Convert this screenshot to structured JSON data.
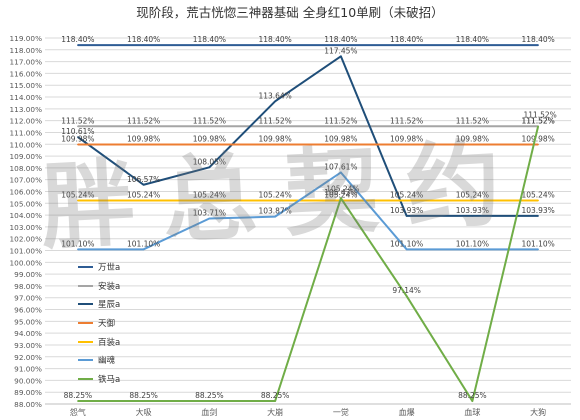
{
  "chart_data": {
    "type": "line",
    "title": "现阶段，荒古恍惚三神器基础 全身红10单刷（未破招）",
    "watermark": "胖总契约",
    "categories": [
      "怨气",
      "大吸",
      "血剑",
      "大崩",
      "一觉",
      "血爆",
      "血球",
      "大狗"
    ],
    "ylim": [
      0.88,
      1.19
    ],
    "y_ticks": [
      "88.00%",
      "89.00%",
      "90.00%",
      "91.00%",
      "92.00%",
      "93.00%",
      "94.00%",
      "95.00%",
      "96.00%",
      "97.00%",
      "98.00%",
      "99.00%",
      "100.00%",
      "101.00%",
      "102.00%",
      "103.00%",
      "104.00%",
      "105.00%",
      "106.00%",
      "107.00%",
      "108.00%",
      "109.00%",
      "110.00%",
      "111.00%",
      "112.00%",
      "113.00%",
      "114.00%",
      "115.00%",
      "116.00%",
      "117.00%",
      "118.00%",
      "119.00%"
    ],
    "xlabel": "",
    "ylabel": "",
    "grid": true,
    "legend_position": "left-middle",
    "series": [
      {
        "name": "万世a",
        "color": "#2e5c94",
        "values": [
          1.184,
          1.184,
          1.184,
          1.184,
          1.184,
          1.184,
          1.184,
          1.184
        ],
        "labels": [
          "118.40%",
          "118.40%",
          "118.40%",
          "118.40%",
          "118.40%",
          "118.40%",
          "118.40%",
          "118.40%"
        ]
      },
      {
        "name": "安装a",
        "color": "#a5a5a5",
        "values": [
          1.1152,
          1.1152,
          1.1152,
          1.1152,
          1.1152,
          1.1152,
          1.1152,
          1.1152
        ],
        "labels": [
          "111.52%",
          "111.52%",
          "111.52%",
          "111.52%",
          "111.52%",
          "111.52%",
          "111.52%",
          "111.52%"
        ]
      },
      {
        "name": "星辰a",
        "color": "#1f4e79",
        "values": [
          1.1061,
          1.0657,
          1.0805,
          1.1364,
          1.1745,
          1.0393,
          1.0393,
          1.0393
        ],
        "labels": [
          "110.61%",
          "106.57%",
          "108.05%",
          "113.64%",
          "117.45%",
          "103.93%",
          "103.93%",
          "103.93%"
        ]
      },
      {
        "name": "天御",
        "color": "#ed7d31",
        "values": [
          1.0998,
          1.0998,
          1.0998,
          1.0998,
          1.0998,
          1.0998,
          1.0998,
          1.0998
        ],
        "labels": [
          "109.98%",
          "109.98%",
          "109.98%",
          "109.98%",
          "109.98%",
          "109.98%",
          "109.98%",
          "109.98%"
        ]
      },
      {
        "name": "百装a",
        "color": "#ffc000",
        "values": [
          1.0524,
          1.0524,
          1.0524,
          1.0524,
          1.0524,
          1.0524,
          1.0524,
          1.0524
        ],
        "labels": [
          "105.24%",
          "105.24%",
          "105.24%",
          "105.24%",
          "105.24%",
          "105.24%",
          "105.24%",
          "105.24%"
        ]
      },
      {
        "name": "幽魂",
        "color": "#5b9bd5",
        "values": [
          1.011,
          1.011,
          1.0371,
          1.0387,
          1.0761,
          1.011,
          1.011,
          1.011
        ],
        "labels": [
          "101.10%",
          "101.10%",
          "103.71%",
          "103.87%",
          "107.61%",
          "101.10%",
          "101.10%",
          "101.10%"
        ]
      },
      {
        "name": "铁马a",
        "color": "#70ad47",
        "values": [
          0.8825,
          0.8825,
          0.8825,
          0.8825,
          1.0543,
          0.9714,
          0.8825,
          1.1152
        ],
        "labels": [
          "88.25%",
          "88.25%",
          "88.25%",
          "88.25%",
          "105.43%",
          "97.14%",
          "88.25%",
          "111.52%"
        ]
      }
    ],
    "extra_labels": [
      {
        "category": "一觉",
        "label": "105.24%"
      },
      {
        "category": "大狗",
        "label": "111.52%"
      }
    ]
  }
}
